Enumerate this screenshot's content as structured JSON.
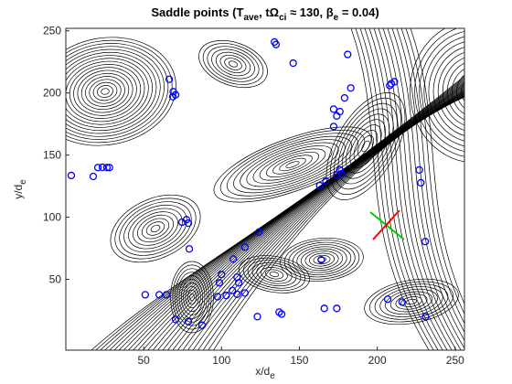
{
  "chart_data": {
    "type": "scatter",
    "title": [
      "Saddle points (T",
      "ave",
      ", tΩ",
      "ci",
      " ≈ 130, β",
      "e",
      " = 0.04)"
    ],
    "xlabel": [
      "x/d",
      "e"
    ],
    "ylabel": [
      "y/d",
      "e"
    ],
    "xlim": [
      0,
      256
    ],
    "ylim": [
      -7,
      252
    ],
    "xticks": [
      50,
      100,
      150,
      200,
      250
    ],
    "yticks": [
      50,
      100,
      150,
      200,
      250
    ],
    "color": "#0000ff",
    "x": [
      3.5,
      17.6,
      20.6,
      23.5,
      26.4,
      28,
      66.4,
      69,
      70.5,
      68.7,
      64.6,
      51,
      60,
      77.5,
      74.6,
      78.7,
      79.3,
      70.5,
      78.7,
      87.5,
      100,
      98.6,
      110,
      111,
      107,
      110,
      97.5,
      103,
      115,
      107.5,
      115,
      124,
      123,
      137,
      138.6,
      134,
      135,
      146,
      172,
      176,
      174,
      172,
      181,
      183,
      179,
      176,
      174,
      177,
      163,
      167,
      164,
      166,
      174,
      208,
      211,
      209,
      227,
      228,
      230.8,
      206.7,
      216,
      231
    ],
    "y": [
      133.6,
      132.8,
      140,
      140.2,
      140,
      140,
      211,
      201,
      198.5,
      197,
      37.6,
      37.6,
      37.6,
      98,
      96,
      95.2,
      74.5,
      17.7,
      16,
      13,
      53.9,
      47.2,
      51.7,
      47.2,
      41,
      38,
      36,
      37,
      39,
      66.4,
      76,
      88,
      20,
      23.6,
      22,
      241,
      239,
      224,
      187,
      185,
      181.5,
      173,
      231,
      204,
      196,
      138,
      134,
      135,
      125.5,
      129,
      65.7,
      26.6,
      26.6,
      206,
      209,
      207.5,
      138,
      127.7,
      80.4,
      34,
      31.7,
      20
    ]
  }
}
